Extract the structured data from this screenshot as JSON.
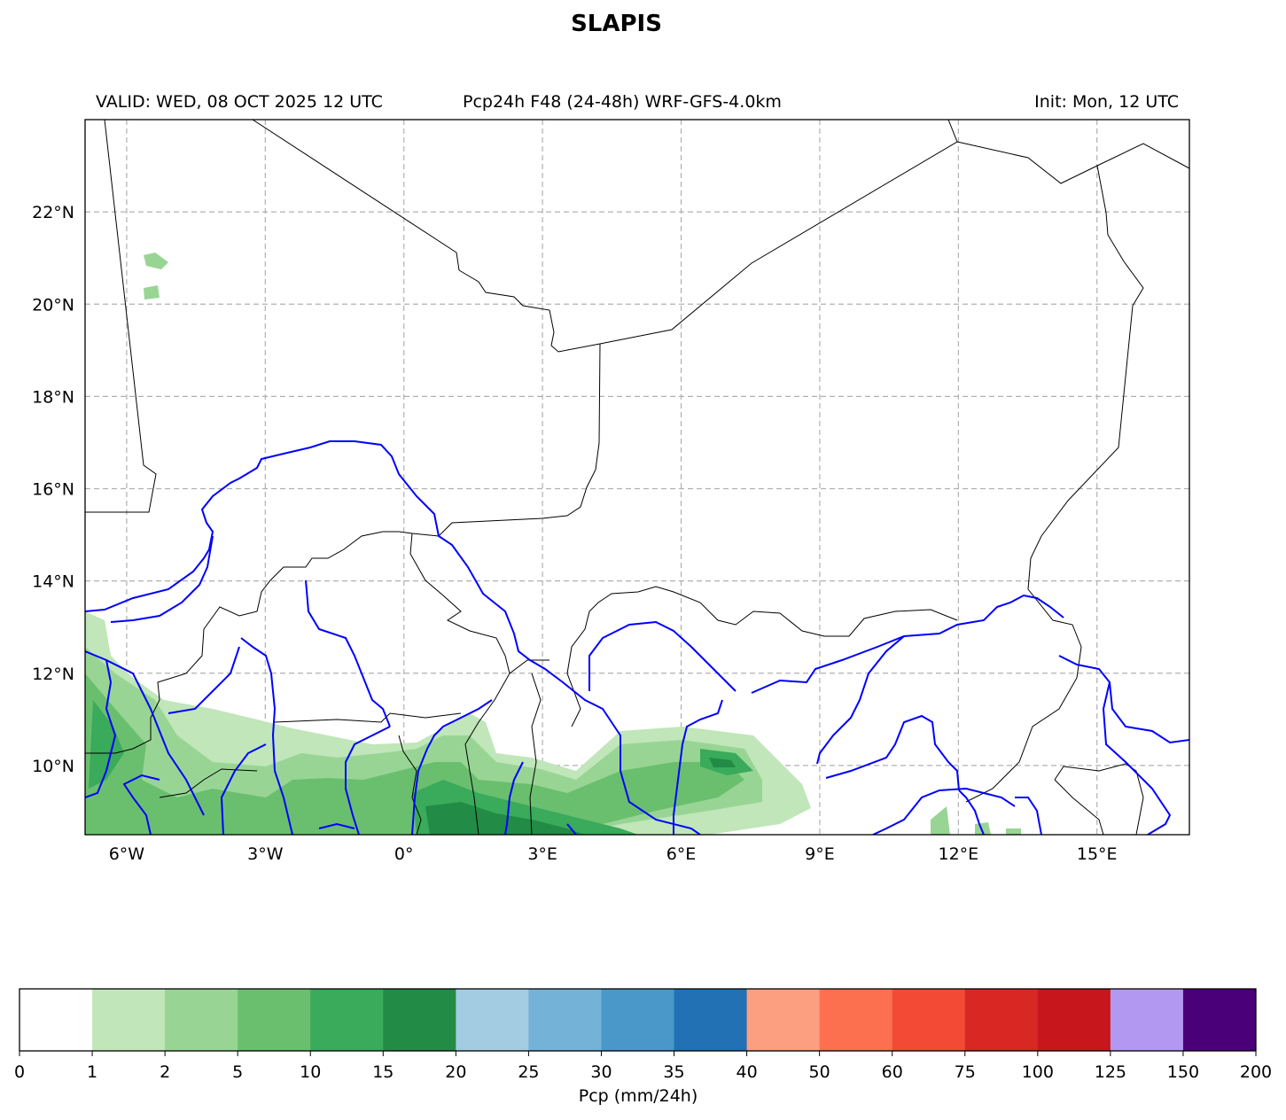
{
  "title": "SLAPIS",
  "subtitles": {
    "valid": "VALID: WED, 08 OCT 2025 12 UTC",
    "product": "Pcp24h F48 (24-48h) WRF-GFS-4.0km",
    "init": "Init: Mon, 12 UTC"
  },
  "map": {
    "lon_range": [
      -6.9,
      17.0
    ],
    "lat_range": [
      8.5,
      24.0
    ],
    "lon_ticks": [
      {
        "value": -6,
        "label": "6°W"
      },
      {
        "value": -3,
        "label": "3°W"
      },
      {
        "value": 0,
        "label": "0°"
      },
      {
        "value": 3,
        "label": "3°E"
      },
      {
        "value": 6,
        "label": "6°E"
      },
      {
        "value": 9,
        "label": "9°E"
      },
      {
        "value": 12,
        "label": "12°E"
      },
      {
        "value": 15,
        "label": "15°E"
      }
    ],
    "lat_ticks": [
      {
        "value": 10,
        "label": "10°N"
      },
      {
        "value": 12,
        "label": "12°N"
      },
      {
        "value": 14,
        "label": "14°N"
      },
      {
        "value": 16,
        "label": "16°N"
      },
      {
        "value": 18,
        "label": "18°N"
      },
      {
        "value": 20,
        "label": "20°N"
      },
      {
        "value": 22,
        "label": "22°N"
      }
    ],
    "grid": true,
    "border_color": "#000000",
    "river_color": "#0000ff"
  },
  "colorbar": {
    "label": "Pcp (mm/24h)",
    "ticks": [
      "0",
      "1",
      "2",
      "5",
      "10",
      "15",
      "20",
      "25",
      "30",
      "35",
      "40",
      "50",
      "60",
      "75",
      "100",
      "125",
      "150",
      "200"
    ],
    "colors": [
      "#ffffff",
      "#c0e6b9",
      "#98d594",
      "#6abf6e",
      "#3aaa5b",
      "#228b45",
      "#a3cce3",
      "#74b2d7",
      "#4a98c9",
      "#2271b5",
      "#fc9f81",
      "#fc7050",
      "#f34a36",
      "#d92723",
      "#c7171c",
      "#b298f1",
      "#4a0078"
    ]
  }
}
